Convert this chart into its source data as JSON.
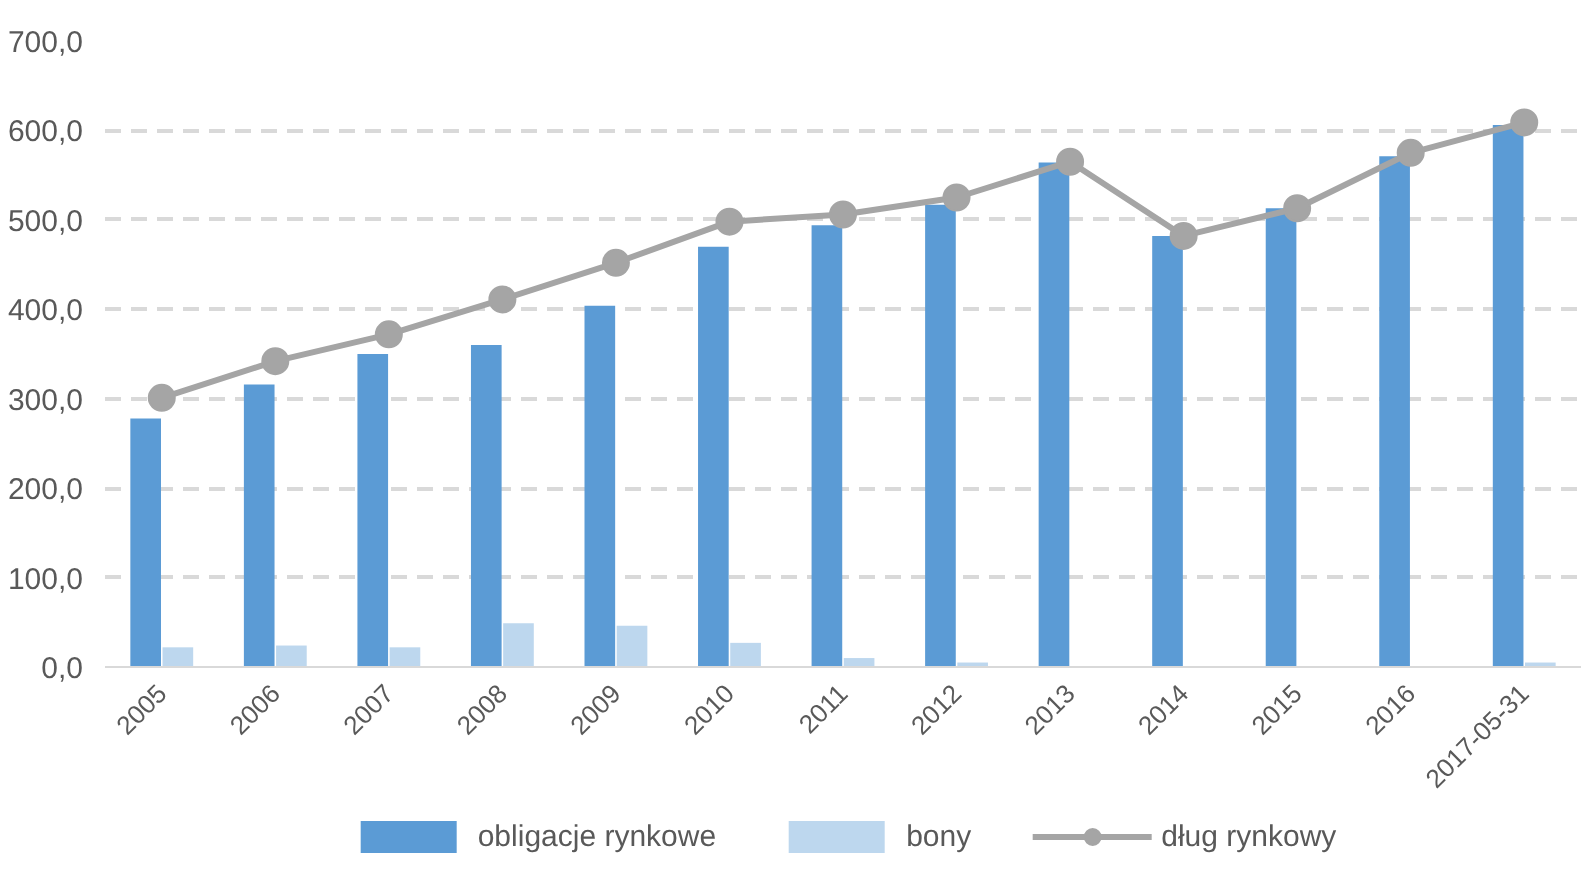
{
  "chart_data": {
    "type": "bar",
    "categories": [
      "2005",
      "2006",
      "2007",
      "2008",
      "2009",
      "2010",
      "2011",
      "2012",
      "2013",
      "2014",
      "2015",
      "2016",
      "2017-05-31"
    ],
    "series": [
      {
        "name": "obligacje rynkowe",
        "color": "#5b9bd5",
        "values": [
          278,
          316,
          350,
          360,
          404,
          470,
          494,
          517,
          564,
          482,
          513,
          571,
          606
        ]
      },
      {
        "name": "bony",
        "color": "#bdd7ee",
        "values": [
          22,
          24,
          22,
          49,
          46,
          27,
          10,
          5,
          0,
          0,
          0,
          0,
          5
        ]
      },
      {
        "name": "dług rynkowy",
        "type": "line",
        "color": "#a5a5a5",
        "marker": "circle",
        "values": [
          301,
          342,
          372,
          411,
          452,
          498,
          506,
          525,
          565,
          482,
          513,
          575,
          609
        ]
      }
    ],
    "ylim": [
      0,
      700
    ],
    "yticks": [
      {
        "value": 0,
        "label": "0,0"
      },
      {
        "value": 100,
        "label": "100,0"
      },
      {
        "value": 200,
        "label": "200,0"
      },
      {
        "value": 300,
        "label": "300,0"
      },
      {
        "value": 400,
        "label": "400,0"
      },
      {
        "value": 500,
        "label": "500,0"
      },
      {
        "value": 600,
        "label": "600,0"
      },
      {
        "value": 700,
        "label": "700,0"
      }
    ],
    "grid": "y",
    "legend": "bottom"
  }
}
